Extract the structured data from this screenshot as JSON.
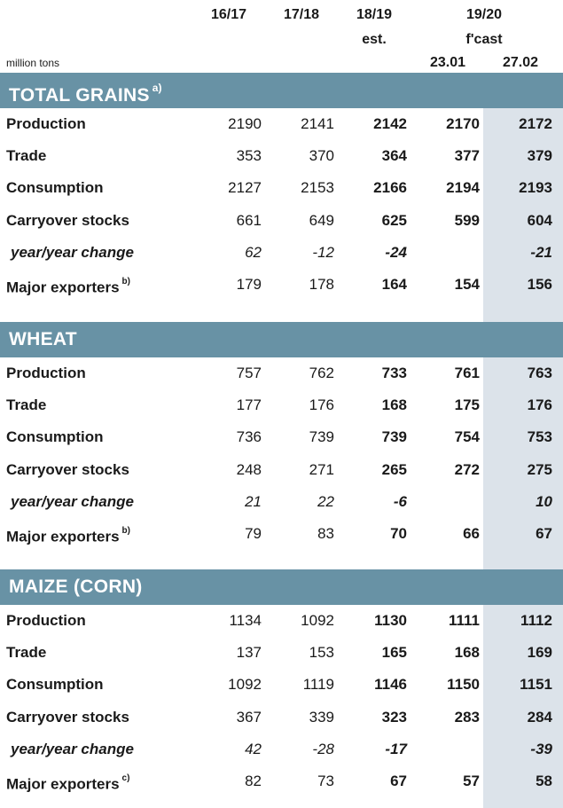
{
  "header": {
    "col1": "16/17",
    "col2": "17/18",
    "col3a": "18/19",
    "col3b": "est.",
    "col4a": "19/20",
    "col4b": "f'cast",
    "col4c": "23.01",
    "col5c": "27.02",
    "unit": "million tons"
  },
  "sections": [
    {
      "title": "TOTAL GRAINS",
      "note": "a)",
      "rows": [
        {
          "label": "Production",
          "note": "",
          "italic": false,
          "values": [
            "2190",
            "2141",
            "2142",
            "2170",
            "2172"
          ]
        },
        {
          "label": "Trade",
          "note": "",
          "italic": false,
          "values": [
            "353",
            "370",
            "364",
            "377",
            "379"
          ]
        },
        {
          "label": "Consumption",
          "note": "",
          "italic": false,
          "values": [
            "2127",
            "2153",
            "2166",
            "2194",
            "2193"
          ]
        },
        {
          "label": "Carryover stocks",
          "note": "",
          "italic": false,
          "values": [
            "661",
            "649",
            "625",
            "599",
            "604"
          ]
        },
        {
          "label": "year/year change",
          "note": "",
          "italic": true,
          "values": [
            "62",
            "-12",
            "-24",
            "",
            "-21"
          ]
        },
        {
          "label": "Major exporters",
          "note": "b)",
          "italic": false,
          "values": [
            "179",
            "178",
            "164",
            "154",
            "156"
          ]
        }
      ]
    },
    {
      "title": "WHEAT",
      "note": "",
      "rows": [
        {
          "label": "Production",
          "note": "",
          "italic": false,
          "values": [
            "757",
            "762",
            "733",
            "761",
            "763"
          ]
        },
        {
          "label": "Trade",
          "note": "",
          "italic": false,
          "values": [
            "177",
            "176",
            "168",
            "175",
            "176"
          ]
        },
        {
          "label": "Consumption",
          "note": "",
          "italic": false,
          "values": [
            "736",
            "739",
            "739",
            "754",
            "753"
          ]
        },
        {
          "label": "Carryover stocks",
          "note": "",
          "italic": false,
          "values": [
            "248",
            "271",
            "265",
            "272",
            "275"
          ]
        },
        {
          "label": "year/year change",
          "note": "",
          "italic": true,
          "values": [
            "21",
            "22",
            "-6",
            "",
            "10"
          ]
        },
        {
          "label": "Major exporters",
          "note": "b)",
          "italic": false,
          "values": [
            "79",
            "83",
            "70",
            "66",
            "67"
          ]
        }
      ]
    },
    {
      "title": "MAIZE (CORN)",
      "note": "",
      "rows": [
        {
          "label": "Production",
          "note": "",
          "italic": false,
          "values": [
            "1134",
            "1092",
            "1130",
            "1111",
            "1112"
          ]
        },
        {
          "label": "Trade",
          "note": "",
          "italic": false,
          "values": [
            "137",
            "153",
            "165",
            "168",
            "169"
          ]
        },
        {
          "label": "Consumption",
          "note": "",
          "italic": false,
          "values": [
            "1092",
            "1119",
            "1146",
            "1150",
            "1151"
          ]
        },
        {
          "label": "Carryover stocks",
          "note": "",
          "italic": false,
          "values": [
            "367",
            "339",
            "323",
            "283",
            "284"
          ]
        },
        {
          "label": "year/year change",
          "note": "",
          "italic": true,
          "values": [
            "42",
            "-28",
            "-17",
            "",
            "-39"
          ]
        },
        {
          "label": "Major exporters",
          "note": "c)",
          "italic": false,
          "values": [
            "82",
            "73",
            "67",
            "57",
            "58"
          ]
        }
      ]
    }
  ]
}
